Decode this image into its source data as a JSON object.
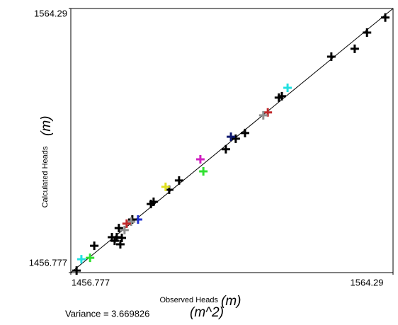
{
  "chart_data": {
    "type": "scatter",
    "xlabel": "Observed Heads",
    "xunit": "(m)",
    "ylabel": "Calculated Heads",
    "yunit": "(m)",
    "note": "Variance = 3.669826",
    "note_unit": "(m^2)",
    "xlim": [
      1456.777,
      1564.29
    ],
    "ylim": [
      1456.777,
      1564.29
    ],
    "xticks": [
      1456.777,
      1564.29
    ],
    "yticks": [
      1456.777,
      1564.29
    ],
    "x": [
      1561.7,
      1555.6,
      1551.5,
      1543.7,
      1529.1,
      1527.2,
      1526.2,
      1522.5,
      1521.0,
      1514.9,
      1511.8,
      1510.2,
      1508.5,
      1501.0,
      1500.0,
      1492.9,
      1489.6,
      1488.4,
      1484.4,
      1483.5,
      1479.2,
      1477.3,
      1476.9,
      1475.4,
      1472.8,
      1474.7,
      1473.8,
      1472.1,
      1470.5,
      1471.4,
      1473.3,
      1464.6,
      1463.2,
      1460.3,
      1458.7
    ],
    "values": [
      1560.6,
      1554.5,
      1547.9,
      1544.7,
      1532.0,
      1528.6,
      1528.0,
      1522.0,
      1520.8,
      1513.6,
      1511.3,
      1512.1,
      1507.0,
      1498.0,
      1502.9,
      1494.3,
      1490.5,
      1491.7,
      1485.6,
      1484.7,
      1478.4,
      1478.4,
      1477.5,
      1476.7,
      1474.9,
      1474.1,
      1470.9,
      1471.2,
      1471.2,
      1469.7,
      1468.3,
      1467.7,
      1462.8,
      1462.2,
      1457.6
    ],
    "colors": [
      "#000000",
      "#000000",
      "#000000",
      "#000000",
      "#22e0e0",
      "#000000",
      "#000000",
      "#c0282a",
      "#909090",
      "#000000",
      "#000000",
      "#101a70",
      "#000000",
      "#30e030",
      "#d020c0",
      "#000000",
      "#000000",
      "#e0e020",
      "#000000",
      "#000000",
      "#2030d0",
      "#000000",
      "#909090",
      "#c0282a",
      "#000000",
      "#909090",
      "#000000",
      "#000000",
      "#000000",
      "#000000",
      "#000000",
      "#000000",
      "#30e030",
      "#22e0e0",
      "#000000"
    ]
  }
}
